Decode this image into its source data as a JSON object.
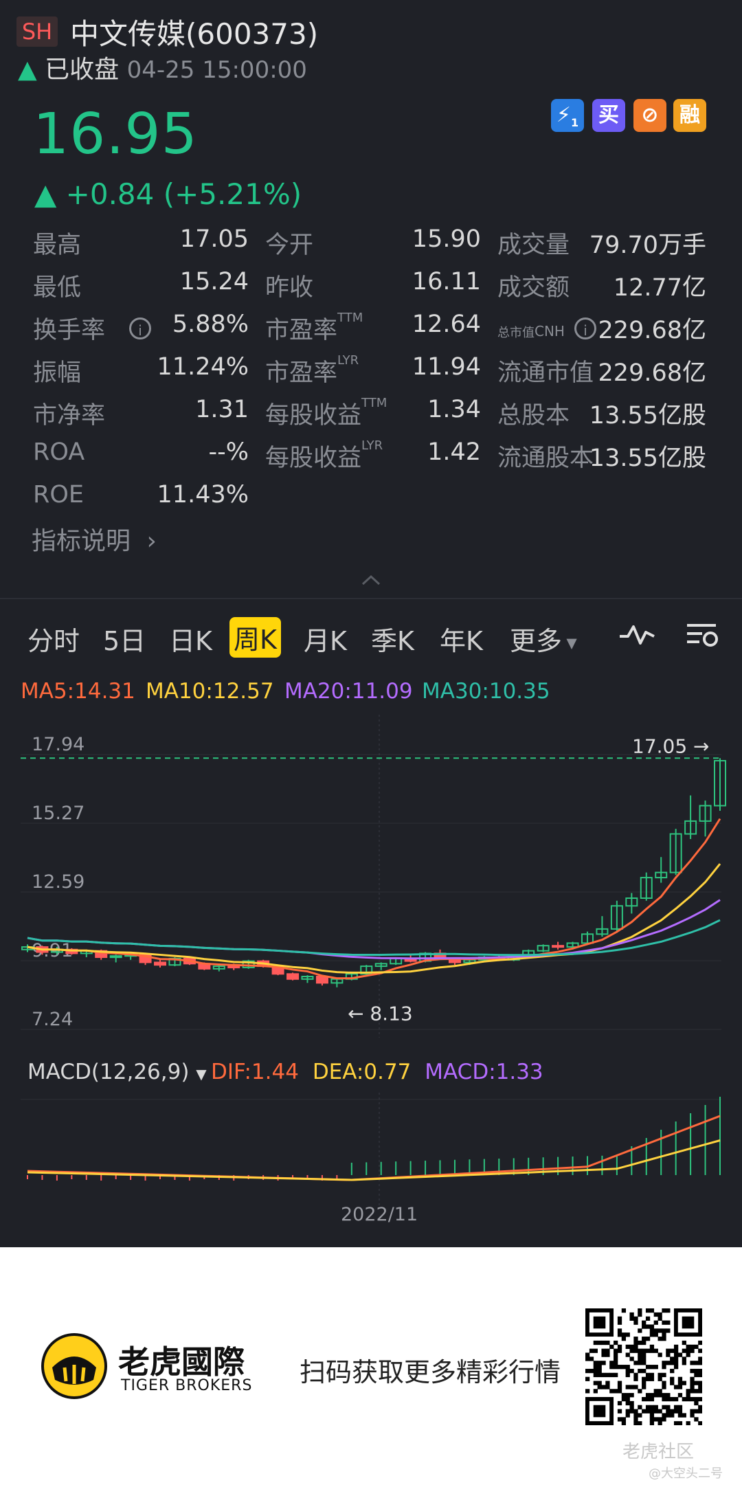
{
  "header": {
    "exchange": "SH",
    "title": "中文传媒(600373)",
    "status_text": "已收盘",
    "time": "04-25 15:00:00",
    "price": "16.95",
    "change": "+0.84 (+5.21%)",
    "badges": [
      "1",
      "买",
      "",
      "融"
    ]
  },
  "stats": {
    "rows": [
      [
        {
          "l": "最高",
          "v": "17.05"
        },
        {
          "l": "今开",
          "v": "15.90"
        },
        {
          "l": "成交量",
          "v": "79.70万手"
        }
      ],
      [
        {
          "l": "最低",
          "v": "15.24"
        },
        {
          "l": "昨收",
          "v": "16.11"
        },
        {
          "l": "成交额",
          "v": "12.77亿"
        }
      ],
      [
        {
          "l": "换手率",
          "v": "5.88%"
        },
        {
          "l": "市盈率",
          "sup": "TTM",
          "v": "12.64"
        },
        {
          "l": "总市值",
          "sup": "CNH",
          "v": "229.68亿"
        }
      ],
      [
        {
          "l": "振幅",
          "v": "11.24%"
        },
        {
          "l": "市盈率",
          "sup": "LYR",
          "v": "11.94"
        },
        {
          "l": "流通市值",
          "v": "229.68亿"
        }
      ],
      [
        {
          "l": "市净率",
          "v": "1.31"
        },
        {
          "l": "每股收益",
          "sup": "TTM",
          "v": "1.34"
        },
        {
          "l": "总股本",
          "v": "13.55亿股"
        }
      ],
      [
        {
          "l": "ROA",
          "v": "--%"
        },
        {
          "l": "每股收益",
          "sup": "LYR",
          "v": "1.42"
        },
        {
          "l": "流通股本",
          "v": "13.55亿股"
        }
      ],
      [
        {
          "l": "ROE",
          "v": "11.43%"
        }
      ]
    ],
    "explain_link": "指标说明"
  },
  "tabs": [
    "分时",
    "5日",
    "日K",
    "周K",
    "月K",
    "季K",
    "年K",
    "更多"
  ],
  "active_tab": "周K",
  "ma": {
    "ma5": "MA5:14.31",
    "ma10": "MA10:12.57",
    "ma20": "MA20:11.09",
    "ma30": "MA30:10.35"
  },
  "chart_data": {
    "type": "candlestick",
    "y_ticks": [
      "17.94",
      "15.27",
      "12.59",
      "9.91",
      "7.24"
    ],
    "ylim": [
      7.24,
      17.94
    ],
    "high_label": "17.05",
    "low_label": "8.13",
    "x_label": "2022/11",
    "candles": [
      [
        9.6,
        9.8,
        9.5,
        9.7
      ],
      [
        9.7,
        9.75,
        9.4,
        9.5
      ],
      [
        9.5,
        9.7,
        9.4,
        9.6
      ],
      [
        9.6,
        9.65,
        9.4,
        9.45
      ],
      [
        9.45,
        9.6,
        9.3,
        9.55
      ],
      [
        9.55,
        9.6,
        9.2,
        9.3
      ],
      [
        9.3,
        9.4,
        9.1,
        9.35
      ],
      [
        9.35,
        9.5,
        9.2,
        9.4
      ],
      [
        9.4,
        9.45,
        9.0,
        9.1
      ],
      [
        9.1,
        9.2,
        8.9,
        9.0
      ],
      [
        9.0,
        9.3,
        8.95,
        9.25
      ],
      [
        9.25,
        9.3,
        9.0,
        9.05
      ],
      [
        9.05,
        9.1,
        8.8,
        8.85
      ],
      [
        8.85,
        9.0,
        8.75,
        8.95
      ],
      [
        8.95,
        9.05,
        8.8,
        8.9
      ],
      [
        8.9,
        9.2,
        8.85,
        9.15
      ],
      [
        9.15,
        9.2,
        8.9,
        8.95
      ],
      [
        8.95,
        9.0,
        8.6,
        8.65
      ],
      [
        8.65,
        8.7,
        8.4,
        8.45
      ],
      [
        8.45,
        8.6,
        8.3,
        8.55
      ],
      [
        8.55,
        8.6,
        8.2,
        8.3
      ],
      [
        8.3,
        8.5,
        8.13,
        8.45
      ],
      [
        8.45,
        8.7,
        8.4,
        8.65
      ],
      [
        8.65,
        9.0,
        8.6,
        8.95
      ],
      [
        8.95,
        9.1,
        8.8,
        9.05
      ],
      [
        9.05,
        9.3,
        9.0,
        9.25
      ],
      [
        9.25,
        9.4,
        9.1,
        9.15
      ],
      [
        9.15,
        9.5,
        9.1,
        9.45
      ],
      [
        9.45,
        9.6,
        9.2,
        9.25
      ],
      [
        9.25,
        9.3,
        9.0,
        9.1
      ],
      [
        9.1,
        9.3,
        9.0,
        9.2
      ],
      [
        9.2,
        9.35,
        9.1,
        9.3
      ],
      [
        9.3,
        9.4,
        9.15,
        9.2
      ],
      [
        9.2,
        9.4,
        9.15,
        9.35
      ],
      [
        9.35,
        9.6,
        9.3,
        9.55
      ],
      [
        9.55,
        9.8,
        9.5,
        9.75
      ],
      [
        9.75,
        9.9,
        9.6,
        9.7
      ],
      [
        9.7,
        9.9,
        9.6,
        9.85
      ],
      [
        9.85,
        10.3,
        9.8,
        10.2
      ],
      [
        10.2,
        10.9,
        10.1,
        10.4
      ],
      [
        10.4,
        11.5,
        10.3,
        11.3
      ],
      [
        11.3,
        11.8,
        11.0,
        11.6
      ],
      [
        11.6,
        12.6,
        11.5,
        12.4
      ],
      [
        12.4,
        13.2,
        12.2,
        12.6
      ],
      [
        12.6,
        14.3,
        12.5,
        14.1
      ],
      [
        14.1,
        15.6,
        13.9,
        14.6
      ],
      [
        14.6,
        15.4,
        14.0,
        15.2
      ],
      [
        15.2,
        17.05,
        15.0,
        16.95
      ]
    ]
  },
  "macd": {
    "label": "MACD(12,26,9)",
    "dif": "DIF:1.44",
    "dea": "DEA:0.77",
    "macd": "MACD:1.33"
  },
  "footer": {
    "brand_cn": "老虎國際",
    "brand_en": "TIGER BROKERS",
    "slogan": "扫码获取更多精彩行情",
    "watermark1": "老虎社区",
    "watermark2": "@大空头二号"
  }
}
